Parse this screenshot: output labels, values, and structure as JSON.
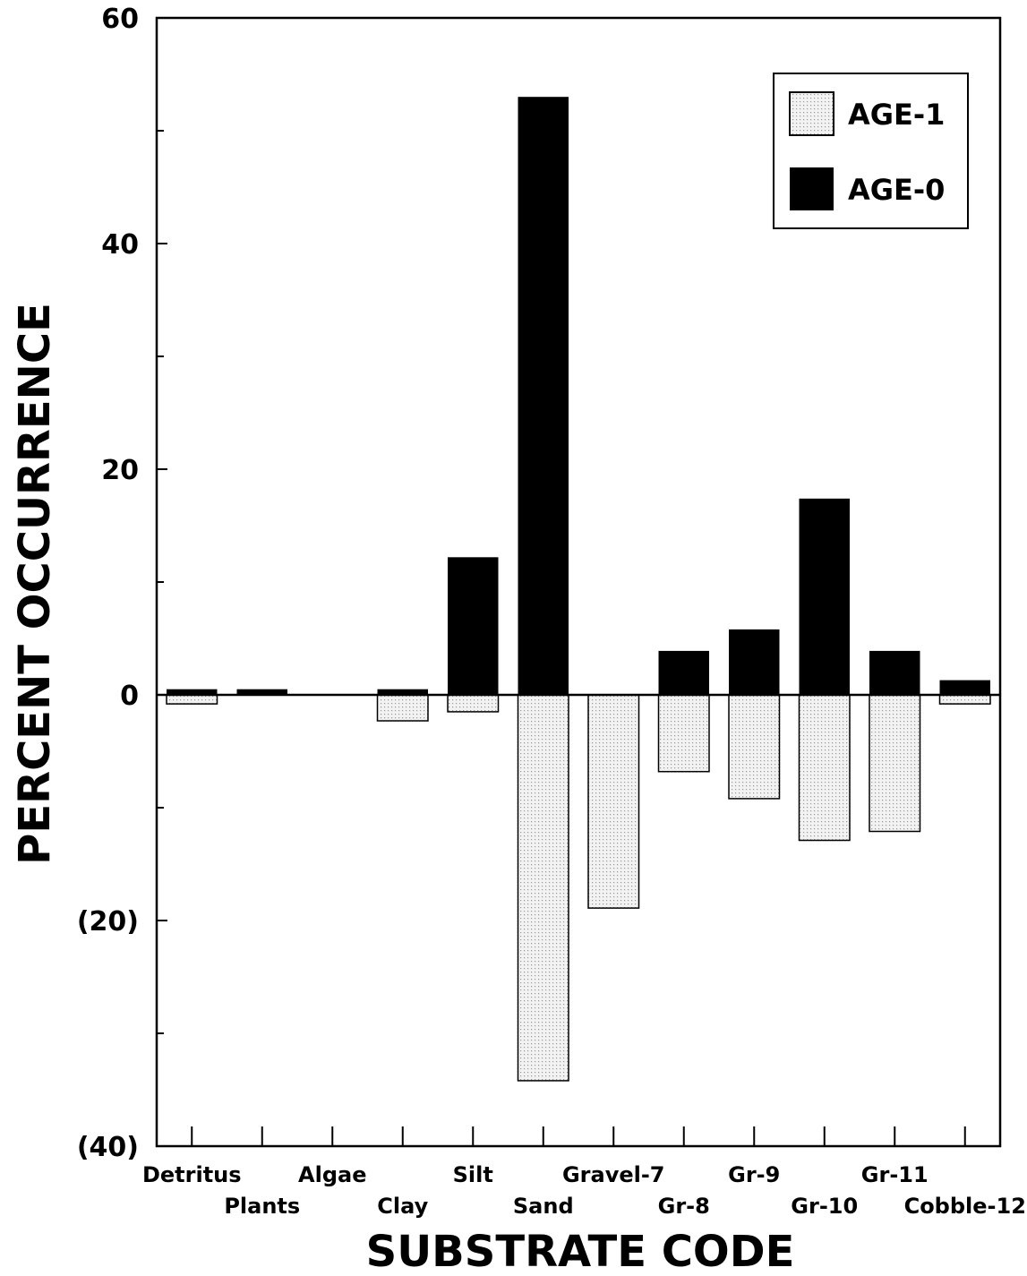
{
  "chart_data": {
    "type": "bar",
    "categories": [
      "Detritus",
      "Plants",
      "Algae",
      "Clay",
      "Silt",
      "Sand",
      "Gravel-7",
      "Gr-8",
      "Gr-9",
      "Gr-10",
      "Gr-11",
      "Cobble-12"
    ],
    "series": [
      {
        "name": "AGE-1",
        "values": [
          -0.8,
          0,
          0,
          -2.3,
          -1.5,
          -34.2,
          -18.9,
          -6.8,
          -9.2,
          -12.9,
          -12.1,
          -0.8
        ]
      },
      {
        "name": "AGE-0",
        "values": [
          0.5,
          0.5,
          0,
          0.5,
          12.2,
          53.0,
          0,
          3.9,
          5.8,
          17.4,
          3.9,
          1.3
        ]
      }
    ],
    "xlabel": "SUBSTRATE CODE",
    "ylabel": "PERCENT OCCURRENCE",
    "ylim": [
      -40,
      60
    ],
    "yticks": [
      60,
      40,
      20,
      0,
      -20,
      -40
    ],
    "ytick_labels": [
      "60",
      "40",
      "20",
      "0",
      "(20)",
      "(40)"
    ],
    "grid": false,
    "legend_position": "top-right",
    "colors": {
      "AGE-1": "#e8e8e8",
      "AGE-0": "#000000"
    }
  }
}
